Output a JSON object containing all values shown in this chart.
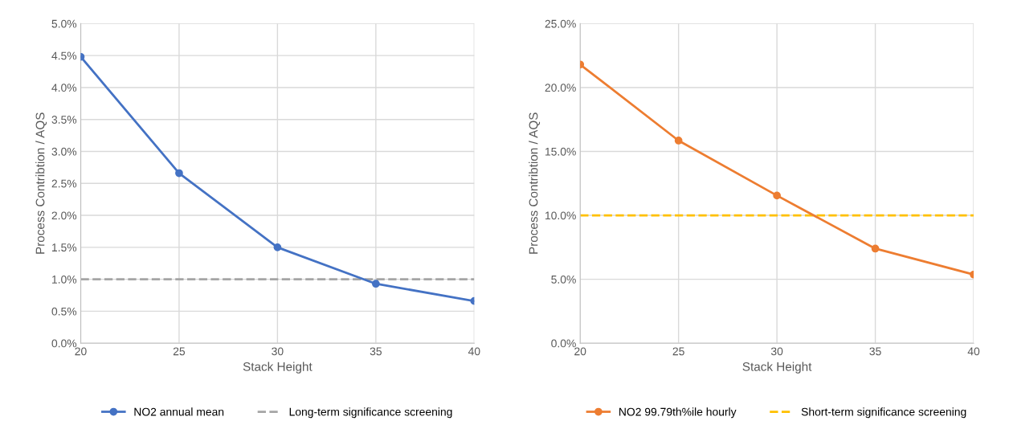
{
  "chart_data": [
    {
      "type": "line",
      "xlabel": "Stack Height",
      "ylabel": "Process Contribtion / AQS",
      "x": [
        20,
        25,
        30,
        35,
        40
      ],
      "series": [
        {
          "name": "NO2 annual mean",
          "color": "#4472c4",
          "values": [
            4.48,
            2.66,
            1.5,
            0.93,
            0.66
          ]
        }
      ],
      "ref_lines": [
        {
          "axis": "y",
          "value": 1.0,
          "label": "Long-term significance screening",
          "color": "#a5a5a5",
          "line_style": "dashed"
        }
      ],
      "xlim": [
        20,
        40
      ],
      "xticks": [
        20,
        25,
        30,
        35,
        40
      ],
      "ylim": [
        0,
        5
      ],
      "yticks": [
        {
          "value": 0,
          "label": "0.0%"
        },
        {
          "value": 0.5,
          "label": "0.5%"
        },
        {
          "value": 1,
          "label": "1.0%"
        },
        {
          "value": 1.5,
          "label": "1.5%"
        },
        {
          "value": 2,
          "label": "2.0%"
        },
        {
          "value": 2.5,
          "label": "2.5%"
        },
        {
          "value": 3,
          "label": "3.0%"
        },
        {
          "value": 3.5,
          "label": "3.5%"
        },
        {
          "value": 4,
          "label": "4.0%"
        },
        {
          "value": 4.5,
          "label": "4.5%"
        },
        {
          "value": 5,
          "label": "5.0%"
        }
      ],
      "grid": true,
      "legend": "bottom",
      "marker": "circle",
      "line_style": "solid"
    },
    {
      "type": "line",
      "xlabel": "Stack Height",
      "ylabel": "Process Contribtion / AQS",
      "x": [
        20,
        25,
        30,
        35,
        40
      ],
      "series": [
        {
          "name": "NO2 99.79th%ile hourly",
          "color": "#ed7d31",
          "values": [
            21.8,
            15.85,
            11.55,
            7.4,
            5.37
          ]
        }
      ],
      "ref_lines": [
        {
          "axis": "y",
          "value": 10.0,
          "label": "Short-term significance screening",
          "color": "#ffc000",
          "line_style": "dashed"
        }
      ],
      "xlim": [
        20,
        40
      ],
      "xticks": [
        20,
        25,
        30,
        35,
        40
      ],
      "ylim": [
        0,
        25
      ],
      "yticks": [
        {
          "value": 0,
          "label": "0.0%"
        },
        {
          "value": 5,
          "label": "5.0%"
        },
        {
          "value": 10,
          "label": "10.0%"
        },
        {
          "value": 15,
          "label": "15.0%"
        },
        {
          "value": 20,
          "label": "20.0%"
        },
        {
          "value": 25,
          "label": "25.0%"
        }
      ],
      "grid": true,
      "legend": "bottom",
      "marker": "circle",
      "line_style": "solid"
    }
  ]
}
